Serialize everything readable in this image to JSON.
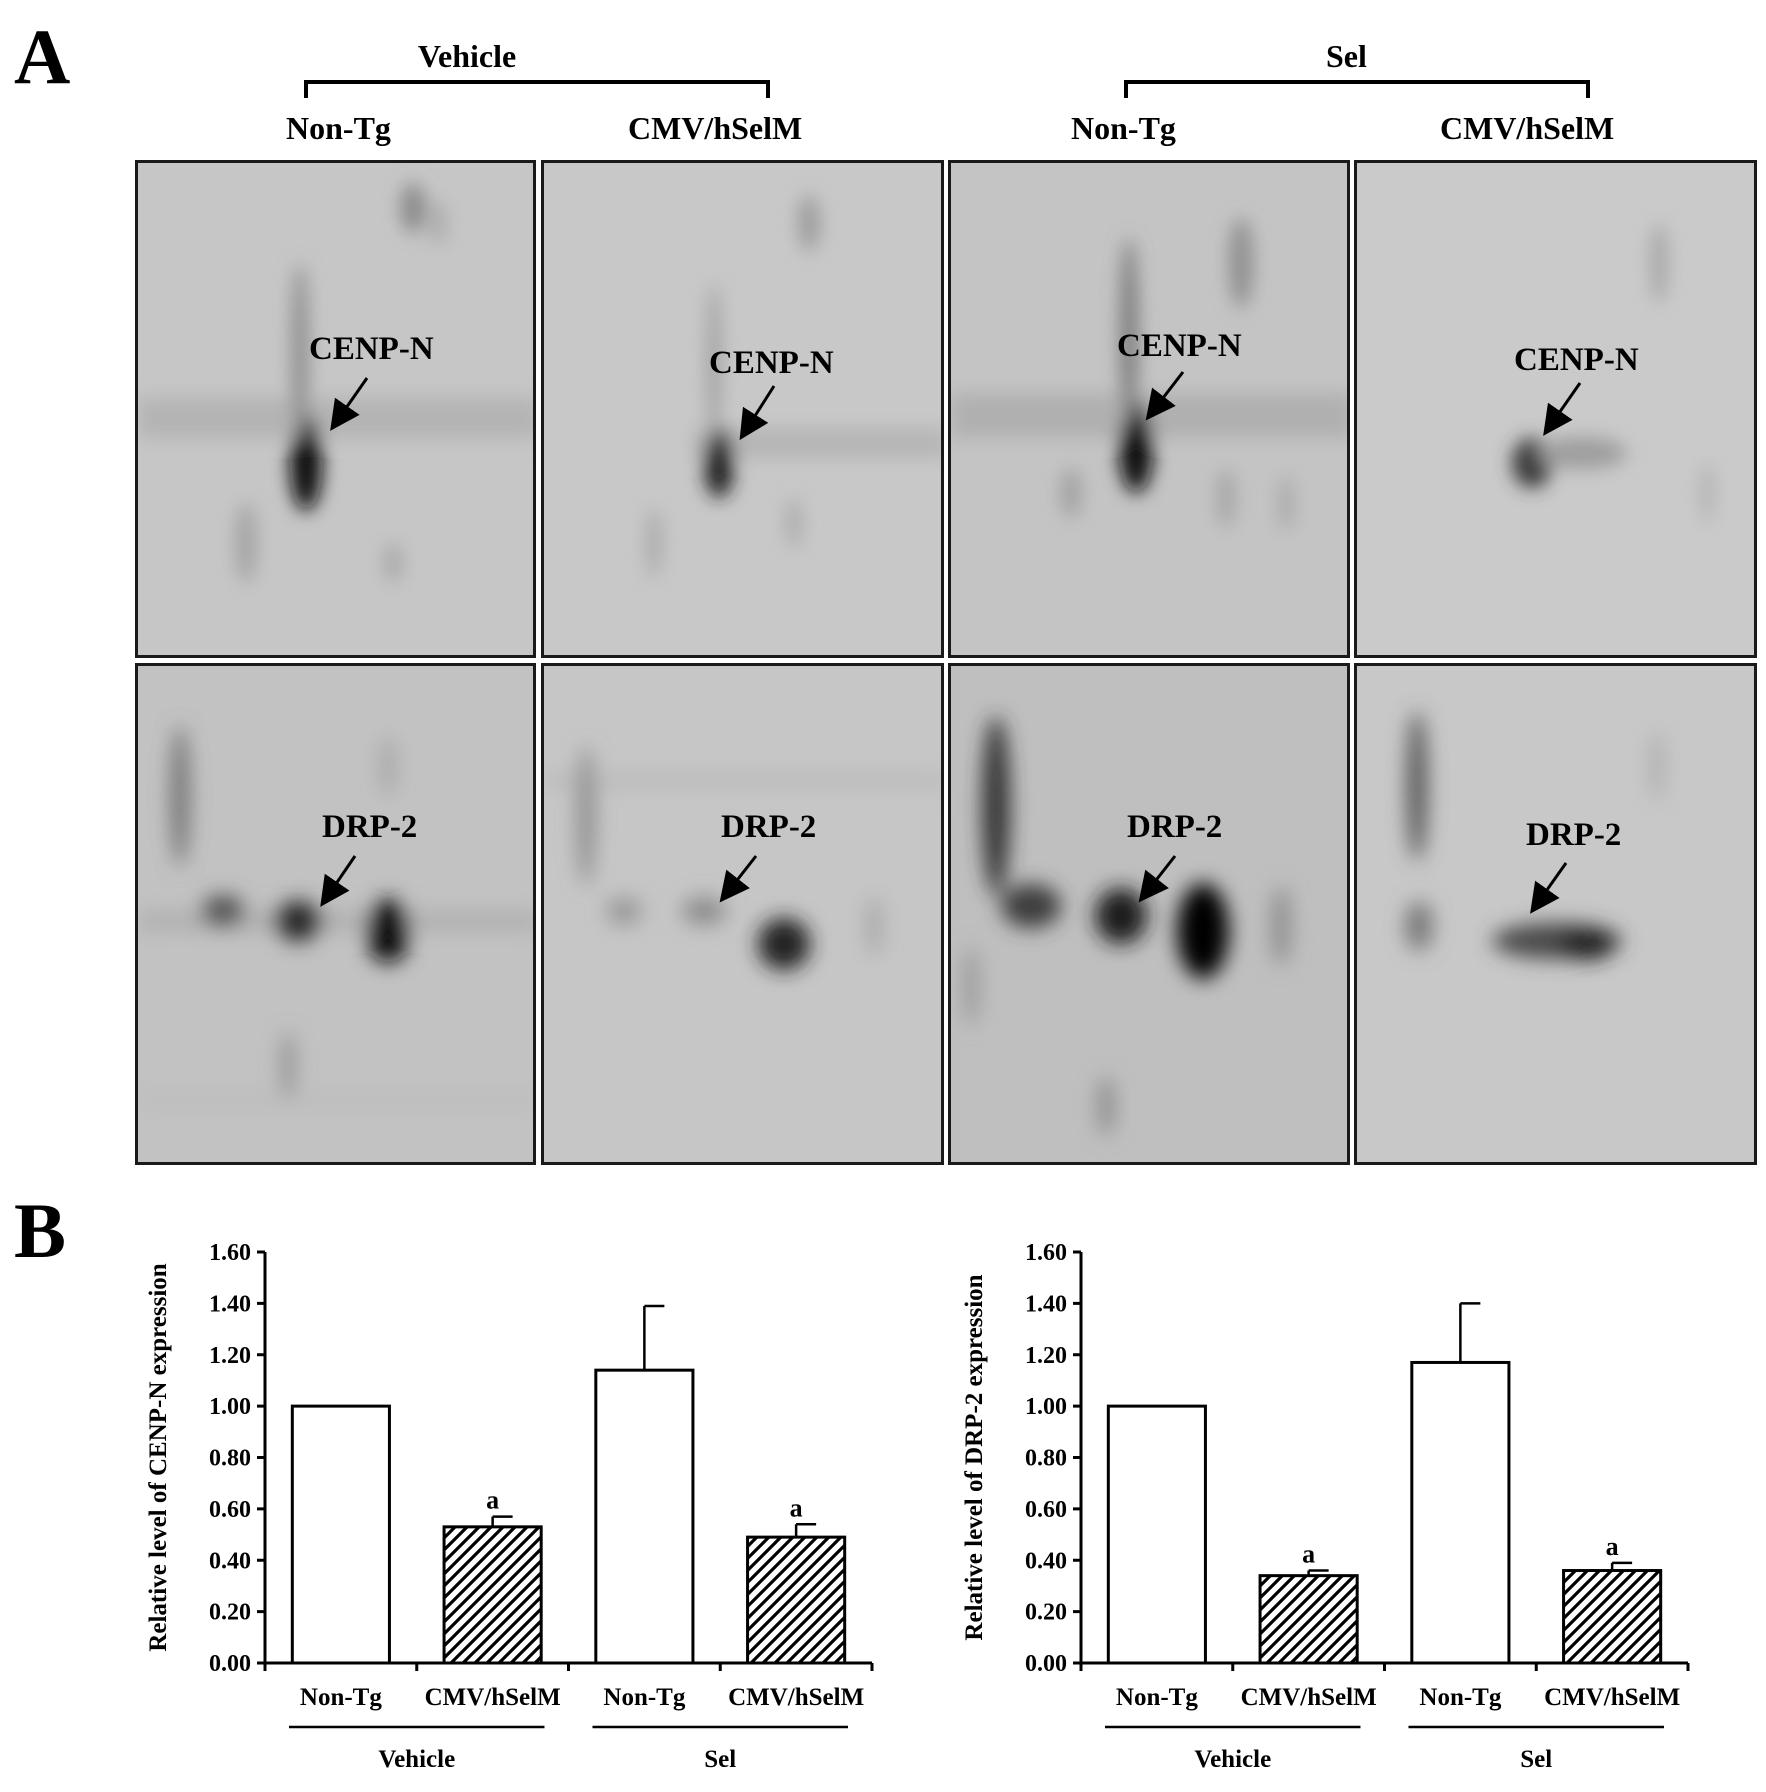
{
  "panel_a": {
    "letter": "A",
    "groups": [
      {
        "label": "Vehicle",
        "strains": [
          "Non-Tg",
          "CMV/hSelM"
        ]
      },
      {
        "label": "Sel",
        "strains": [
          "Non-Tg",
          "CMV/hSelM"
        ]
      }
    ],
    "spot_labels": {
      "top": "CENP-N",
      "bottom": "DRP-2"
    }
  },
  "panel_b": {
    "letter": "B"
  },
  "chart_data": [
    {
      "type": "bar",
      "title": "",
      "ylabel": "Relative level of CENP-N expression",
      "xlabel": "",
      "ylim": [
        0,
        1.6
      ],
      "yticks": [
        "0.00",
        "0.20",
        "0.40",
        "0.60",
        "0.80",
        "1.00",
        "1.20",
        "1.40",
        "1.60"
      ],
      "categories": [
        "Non-Tg",
        "CMV/hSelM",
        "Non-Tg",
        "CMV/hSelM"
      ],
      "groups": [
        "Vehicle",
        "Sel"
      ],
      "values": [
        1.0,
        0.53,
        1.14,
        0.49
      ],
      "errors": [
        0.0,
        0.04,
        0.25,
        0.05
      ],
      "annotations": [
        "",
        "a",
        "",
        "a"
      ],
      "fill": [
        "plain",
        "hatched",
        "plain",
        "hatched"
      ]
    },
    {
      "type": "bar",
      "title": "",
      "ylabel": "Relative level of DRP-2 expression",
      "xlabel": "",
      "ylim": [
        0,
        1.6
      ],
      "yticks": [
        "0.00",
        "0.20",
        "0.40",
        "0.60",
        "0.80",
        "1.00",
        "1.20",
        "1.40",
        "1.60"
      ],
      "categories": [
        "Non-Tg",
        "CMV/hSelM",
        "Non-Tg",
        "CMV/hSelM"
      ],
      "groups": [
        "Vehicle",
        "Sel"
      ],
      "values": [
        1.0,
        0.34,
        1.17,
        0.36
      ],
      "errors": [
        0.0,
        0.02,
        0.23,
        0.03
      ],
      "annotations": [
        "",
        "a",
        "",
        "a"
      ],
      "fill": [
        "plain",
        "hatched",
        "plain",
        "hatched"
      ]
    }
  ]
}
